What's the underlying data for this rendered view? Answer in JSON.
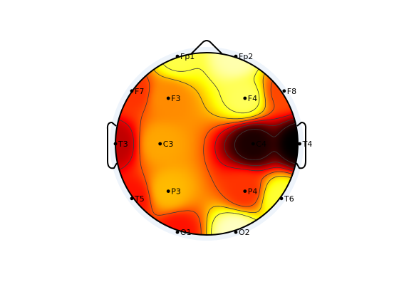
{
  "chart_data": {
    "type": "heatmap",
    "subtype": "eeg-scalp-topography",
    "title": "",
    "colormap": "hot",
    "colors": {
      "background": "#ffffff",
      "head_outline": "#000000",
      "contour": "#3a3a3a",
      "halo": "#eef4fb"
    },
    "electrodes": [
      {
        "label": "Fp1",
        "value": 0.18
      },
      {
        "label": "Fp2",
        "value": 0.08
      },
      {
        "label": "F7",
        "value": 0.55
      },
      {
        "label": "F3",
        "value": 0.42
      },
      {
        "label": "F4",
        "value": 0.16
      },
      {
        "label": "F8",
        "value": 0.52
      },
      {
        "label": "T3",
        "value": 0.72
      },
      {
        "label": "C3",
        "value": 0.38
      },
      {
        "label": "C4",
        "value": 0.96
      },
      {
        "label": "T4",
        "value": 1.0
      },
      {
        "label": "T5",
        "value": 0.6
      },
      {
        "label": "P3",
        "value": 0.35
      },
      {
        "label": "P4",
        "value": 0.55
      },
      {
        "label": "T6",
        "value": 0.2
      },
      {
        "label": "O1",
        "value": 0.6
      },
      {
        "label": "O2",
        "value": 0.06
      }
    ],
    "contour_levels": [
      0.2,
      0.35,
      0.5,
      0.65,
      0.8,
      0.92
    ]
  }
}
